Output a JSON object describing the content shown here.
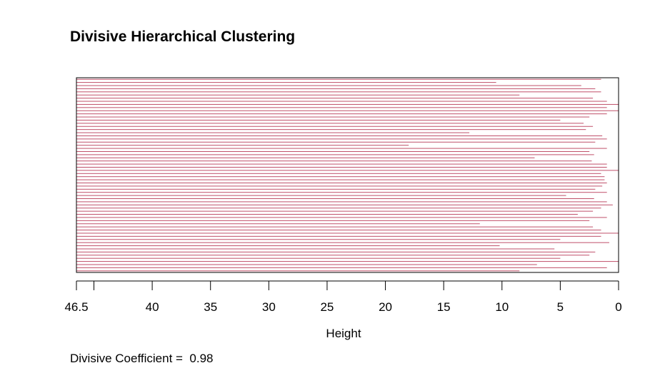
{
  "chart_data": {
    "type": "banner",
    "title": "Divisive Hierarchical Clustering",
    "xlabel": "Height",
    "xlim": [
      46.5,
      0
    ],
    "x_ticks": [
      46.5,
      40,
      35,
      30,
      25,
      20,
      15,
      10,
      5,
      0
    ],
    "x_minor_ticks": [
      45
    ],
    "x_tick_labels": [
      "46.5",
      "40",
      "35",
      "30",
      "25",
      "20",
      "15",
      "10",
      "5",
      "0"
    ],
    "bar_heights": [
      1.5,
      10.5,
      3.2,
      2.0,
      1.5,
      8.5,
      2.2,
      1.0,
      0.0,
      1.0,
      0.0,
      1.0,
      2.5,
      5.0,
      3.0,
      2.2,
      2.8,
      12.8,
      1.4,
      1.0,
      2.0,
      18.0,
      1.0,
      2.5,
      2.1,
      7.2,
      2.3,
      1.0,
      1.0,
      0.0,
      1.5,
      1.2,
      1.2,
      1.0,
      1.4,
      2.0,
      1.0,
      4.5,
      2.1,
      1.0,
      0.5,
      1.5,
      2.2,
      3.5,
      1.0,
      2.5,
      11.9,
      2.2,
      1.5,
      0.0,
      1.5,
      5.0,
      0.8,
      10.2,
      5.5,
      2.0,
      2.5,
      5.0,
      0.0,
      7.0,
      1.0,
      8.5
    ],
    "colors": {
      "bars": "#c0506a",
      "frame": "#000000"
    },
    "annotation": "Divisive Coefficient =  0.98"
  }
}
